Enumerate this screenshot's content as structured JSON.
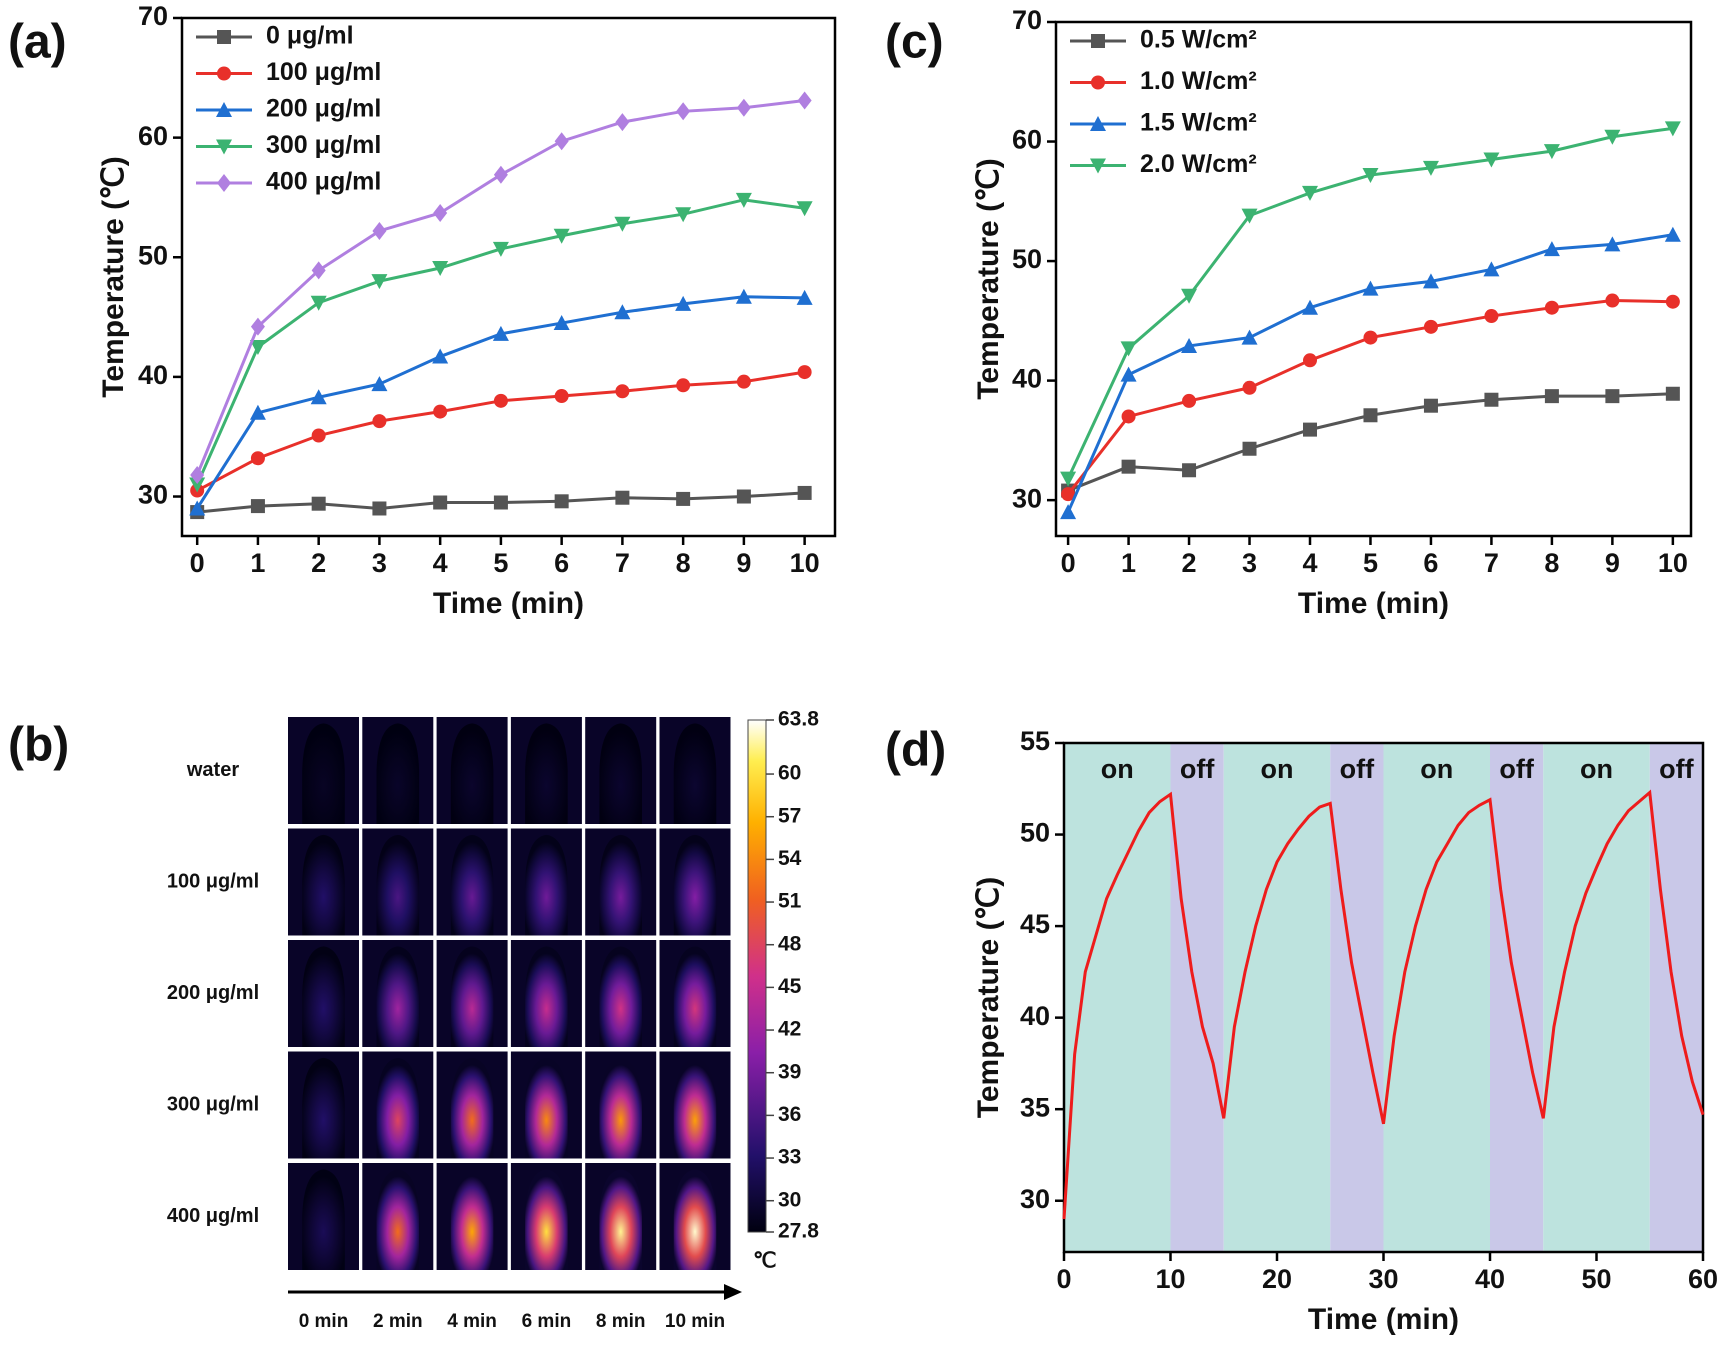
{
  "chart_data": [
    {
      "type": "line",
      "label": "(a)",
      "xlabel": "Time (min)",
      "ylabel": "Temperature (℃)",
      "x": [
        0,
        1,
        2,
        3,
        4,
        5,
        6,
        7,
        8,
        9,
        10
      ],
      "xlim": [
        -0.25,
        10.5
      ],
      "ylim": [
        26.7,
        70
      ],
      "xticks": [
        0,
        1,
        2,
        3,
        4,
        5,
        6,
        7,
        8,
        9,
        10
      ],
      "yticks": [
        30,
        40,
        50,
        60,
        70
      ],
      "legend": "upper left",
      "series": [
        {
          "name": "0 μg/ml",
          "color": "#555555",
          "marker": "square",
          "values": [
            28.7,
            29.2,
            29.4,
            29.0,
            29.5,
            29.5,
            29.6,
            29.9,
            29.8,
            30.0,
            30.3
          ]
        },
        {
          "name": "100 μg/ml",
          "color": "#e8302a",
          "marker": "circle",
          "values": [
            30.5,
            33.2,
            35.1,
            36.3,
            37.1,
            38.0,
            38.4,
            38.8,
            39.3,
            39.6,
            40.4
          ]
        },
        {
          "name": "200 μg/ml",
          "color": "#1f6fd1",
          "marker": "triangle-up",
          "values": [
            29.0,
            37.0,
            38.3,
            39.4,
            41.7,
            43.6,
            44.5,
            45.4,
            46.1,
            46.7,
            46.6
          ]
        },
        {
          "name": "300 μg/ml",
          "color": "#3cb371",
          "marker": "triangle-down",
          "values": [
            31.0,
            42.5,
            46.2,
            48.0,
            49.1,
            50.7,
            51.8,
            52.8,
            53.6,
            54.8,
            54.1
          ]
        },
        {
          "name": "400 μg/ml",
          "color": "#b07fe0",
          "marker": "diamond",
          "values": [
            31.8,
            44.2,
            48.9,
            52.2,
            53.7,
            56.9,
            59.7,
            61.3,
            62.2,
            62.5,
            63.1
          ]
        }
      ]
    },
    {
      "type": "image-grid",
      "label": "(b)",
      "rows": [
        "water",
        "100 μg/ml",
        "200 μg/ml",
        "300 μg/ml",
        "400 μg/ml"
      ],
      "columns": [
        "0 min",
        "2 min",
        "4 min",
        "6 min",
        "8 min",
        "10 min"
      ],
      "values": [
        [
          29,
          29.3,
          29.5,
          29.6,
          29.6,
          29.7
        ],
        [
          33,
          36,
          38,
          38.5,
          39,
          40
        ],
        [
          33,
          42,
          44,
          45,
          46,
          46.5
        ],
        [
          33,
          48,
          52,
          54,
          55,
          55.5
        ],
        [
          32,
          52,
          56,
          60,
          62,
          63
        ]
      ],
      "clim": [
        27.8,
        63.8
      ],
      "unit": "℃",
      "cticks": [
        63.8,
        60,
        57,
        54,
        51,
        48,
        45,
        42,
        39,
        36,
        33,
        30,
        27.8
      ]
    },
    {
      "type": "line",
      "label": "(c)",
      "xlabel": "Time (min)",
      "ylabel": "Temperature (℃)",
      "x": [
        0,
        1,
        2,
        3,
        4,
        5,
        6,
        7,
        8,
        9,
        10
      ],
      "xlim": [
        -0.2,
        10.3
      ],
      "ylim": [
        27,
        70
      ],
      "xticks": [
        0,
        1,
        2,
        3,
        4,
        5,
        6,
        7,
        8,
        9,
        10
      ],
      "yticks": [
        30,
        40,
        50,
        60,
        70
      ],
      "legend": "upper left",
      "series": [
        {
          "name": "0.5 W/cm²",
          "color": "#555555",
          "marker": "square",
          "values": [
            30.8,
            32.8,
            32.5,
            34.3,
            35.9,
            37.1,
            37.9,
            38.4,
            38.7,
            38.7,
            38.9
          ]
        },
        {
          "name": "1.0 W/cm²",
          "color": "#e8302a",
          "marker": "circle",
          "values": [
            30.5,
            37.0,
            38.3,
            39.4,
            41.7,
            43.6,
            44.5,
            45.4,
            46.1,
            46.7,
            46.6
          ]
        },
        {
          "name": "1.5 W/cm²",
          "color": "#1f6fd1",
          "marker": "triangle-up",
          "values": [
            29.0,
            40.5,
            42.9,
            43.6,
            46.1,
            47.7,
            48.3,
            49.3,
            51.0,
            51.4,
            52.2
          ]
        },
        {
          "name": "2.0 W/cm²",
          "color": "#3cb371",
          "marker": "triangle-down",
          "values": [
            31.8,
            42.7,
            47.1,
            53.8,
            55.7,
            57.2,
            57.8,
            58.5,
            59.2,
            60.4,
            61.1
          ]
        }
      ]
    },
    {
      "type": "line",
      "label": "(d)",
      "xlabel": "Time (min)",
      "ylabel": "Temperature (℃)",
      "x": [
        0,
        1,
        2,
        3,
        4,
        5,
        6,
        7,
        8,
        9,
        10,
        11,
        12,
        13,
        14,
        15,
        16,
        17,
        18,
        19,
        20,
        21,
        22,
        23,
        24,
        25,
        26,
        27,
        28,
        29,
        30,
        31,
        32,
        33,
        34,
        35,
        36,
        37,
        38,
        39,
        40,
        41,
        42,
        43,
        44,
        45,
        46,
        47,
        48,
        49,
        50,
        51,
        52,
        53,
        54,
        55,
        56,
        57,
        58,
        59,
        60
      ],
      "xlim": [
        0,
        60
      ],
      "ylim": [
        27.2,
        55
      ],
      "xticks": [
        0,
        10,
        20,
        30,
        40,
        50,
        60
      ],
      "yticks": [
        30,
        35,
        40,
        45,
        50,
        55
      ],
      "regions": [
        {
          "label": "on",
          "color": "#bde3de",
          "span": [
            0,
            10
          ]
        },
        {
          "label": "off",
          "color": "#c9c8e8",
          "span": [
            10,
            15
          ]
        },
        {
          "label": "on",
          "color": "#bde3de",
          "span": [
            15,
            25
          ]
        },
        {
          "label": "off",
          "color": "#c9c8e8",
          "span": [
            25,
            30
          ]
        },
        {
          "label": "on",
          "color": "#bde3de",
          "span": [
            30,
            40
          ]
        },
        {
          "label": "off",
          "color": "#c9c8e8",
          "span": [
            40,
            45
          ]
        },
        {
          "label": "on",
          "color": "#bde3de",
          "span": [
            45,
            55
          ]
        },
        {
          "label": "off",
          "color": "#c9c8e8",
          "span": [
            55,
            60
          ]
        }
      ],
      "series": [
        {
          "color": "#ee1c1c",
          "values": [
            29,
            38,
            42.5,
            44.5,
            46.5,
            47.8,
            49,
            50.2,
            51.2,
            51.8,
            52.2,
            46.5,
            42.5,
            39.5,
            37.5,
            34.5,
            39.5,
            42.5,
            45,
            47,
            48.5,
            49.5,
            50.3,
            51,
            51.5,
            51.7,
            47,
            43,
            40,
            37,
            34.2,
            39,
            42.5,
            45,
            47,
            48.5,
            49.5,
            50.5,
            51.2,
            51.6,
            51.9,
            47,
            43,
            40,
            37,
            34.5,
            39.5,
            42.5,
            45,
            46.8,
            48.2,
            49.5,
            50.5,
            51.3,
            51.8,
            52.3,
            47,
            42.5,
            39,
            36.5,
            34.7
          ]
        }
      ]
    }
  ]
}
